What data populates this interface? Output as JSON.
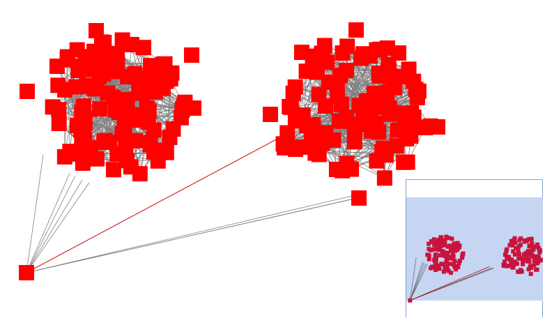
{
  "graph": {
    "node_color": "#ff0000",
    "edge_color": "#808080",
    "highlight_edge_color": "#cc0000",
    "clusters": [
      {
        "id": "cluster-left",
        "node_count": 110
      },
      {
        "id": "cluster-right",
        "node_count": 110
      }
    ],
    "hub_node": {
      "id": "hub"
    },
    "hub_links": {
      "to_left_cluster": 5,
      "to_right_cluster": 3,
      "highlighted": 1
    }
  },
  "overview": {
    "node_color": "#c8143c",
    "viewport_color": "#c6d5f2",
    "border_color": "#7a9fd6"
  }
}
